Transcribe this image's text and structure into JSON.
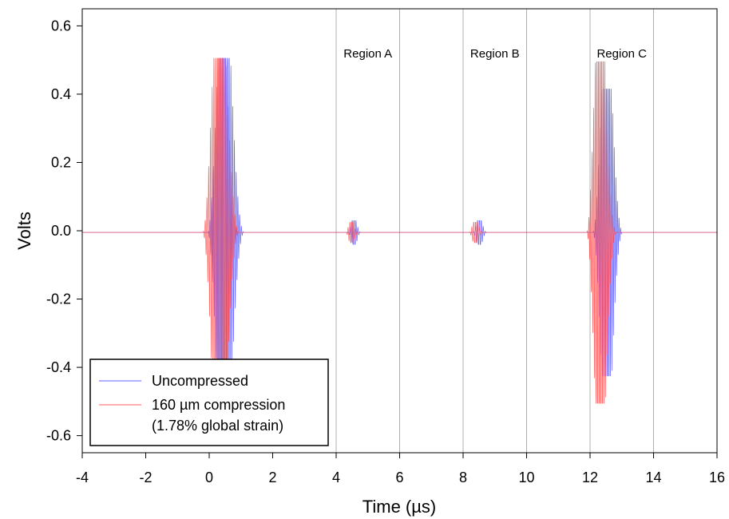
{
  "chart_data": {
    "type": "line",
    "title": "",
    "xlabel": "Time (µs)",
    "ylabel": "Volts",
    "xlim": [
      -4,
      16
    ],
    "ylim": [
      -0.65,
      0.65
    ],
    "x_ticks": [
      -4,
      -2,
      0,
      2,
      4,
      6,
      8,
      10,
      12,
      14,
      16
    ],
    "y_ticks": [
      -0.6,
      -0.4,
      -0.2,
      0.0,
      0.2,
      0.4,
      0.6
    ],
    "x_tick_labels": [
      "-4",
      "-2",
      "0",
      "2",
      "4",
      "6",
      "8",
      "10",
      "12",
      "14",
      "16"
    ],
    "y_tick_labels": [
      "-0.6",
      "-0.4",
      "-0.2",
      "0.0",
      "0.2",
      "0.4",
      "0.6"
    ],
    "grid": false,
    "vertical_lines": [
      4,
      6,
      8,
      10,
      12,
      14
    ],
    "regions": [
      {
        "label": "Region A",
        "x_start": 4,
        "x_end": 6
      },
      {
        "label": "Region B",
        "x_start": 8,
        "x_end": 10
      },
      {
        "label": "Region C",
        "x_start": 12,
        "x_end": 14
      }
    ],
    "legend": {
      "position": "bottom-left",
      "entries": [
        {
          "label": "Uncompressed"
        },
        {
          "label": "160 µm compression",
          "sublabel": "(1.78% global strain)"
        }
      ]
    },
    "series": [
      {
        "name": "Uncompressed",
        "color": "#4040ff",
        "baseline": -0.005,
        "packets": [
          {
            "center": 0.45,
            "width": 0.42,
            "amp": 0.51,
            "period": 0.055
          },
          {
            "center": 4.55,
            "width": 0.15,
            "amp": 0.035,
            "period": 0.06
          },
          {
            "center": 8.5,
            "width": 0.16,
            "amp": 0.035,
            "period": 0.06
          },
          {
            "center": 12.5,
            "width": 0.34,
            "amp": 0.42,
            "period": 0.05
          }
        ]
      },
      {
        "name": "160 µm compression",
        "color": "#ff4040",
        "baseline": -0.005,
        "packets": [
          {
            "center": 0.3,
            "width": 0.42,
            "amp": 0.51,
            "period": 0.055
          },
          {
            "center": 4.48,
            "width": 0.15,
            "amp": 0.03,
            "period": 0.06
          },
          {
            "center": 8.38,
            "width": 0.16,
            "amp": 0.03,
            "period": 0.06
          },
          {
            "center": 12.3,
            "width": 0.34,
            "amp": 0.5,
            "period": 0.05
          }
        ]
      }
    ]
  }
}
